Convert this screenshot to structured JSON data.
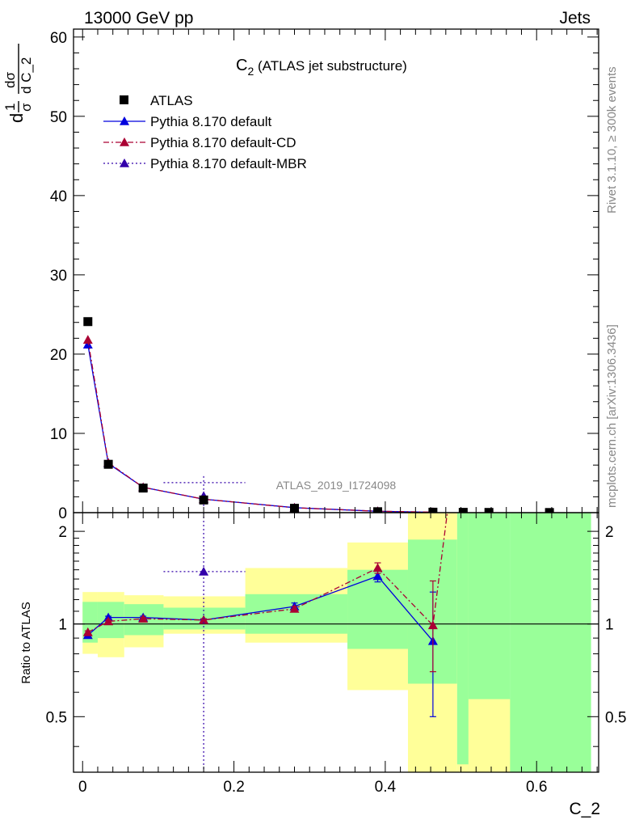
{
  "chart_data": {
    "type": "scatter",
    "header": {
      "left": "13000 GeV pp",
      "right": "Jets"
    },
    "title": {
      "main": "C",
      "sub": "2",
      "rest": " (ATLAS jet substructure)"
    },
    "xlabel": "C_2",
    "ylabel": {
      "num1": "1",
      "den1": "σ",
      "num2": "dσ",
      "den2": "d C_2",
      "d": "d",
      "d2": "d"
    },
    "ratio_ylabel": "Ratio to ATLAS",
    "analysis_id": "ATLAS_2019_I1724098",
    "side_text_1": "Rivet 3.1.10, ≥ 300k events",
    "side_text_2": "mcplots.cern.ch [arXiv:1306.3436]",
    "xlim": [
      -0.012,
      0.682
    ],
    "ylim_main": [
      0,
      61
    ],
    "ylim_ratio": [
      0.33,
      2.3
    ],
    "ratio_log_scale": true,
    "x_ticks": [
      {
        "v": 0,
        "label": "0"
      },
      {
        "v": 0.2,
        "label": "0.2"
      },
      {
        "v": 0.4,
        "label": "0.4"
      },
      {
        "v": 0.6,
        "label": "0.6"
      }
    ],
    "y_ticks_main": [
      {
        "v": 0,
        "label": "0"
      },
      {
        "v": 10,
        "label": "10"
      },
      {
        "v": 20,
        "label": "20"
      },
      {
        "v": 30,
        "label": "30"
      },
      {
        "v": 40,
        "label": "40"
      },
      {
        "v": 50,
        "label": "50"
      },
      {
        "v": 60,
        "label": "60"
      }
    ],
    "y_ticks_ratio": [
      {
        "v": 0.5,
        "label": "0.5"
      },
      {
        "v": 1,
        "label": "1"
      },
      {
        "v": 2,
        "label": "2"
      }
    ],
    "legend": [
      {
        "label": "ATLAS",
        "color": "#000000",
        "style": "square"
      },
      {
        "label": "Pythia 8.170 default",
        "color": "#0000dd",
        "style": "solid"
      },
      {
        "label": "Pythia 8.170 default-CD",
        "color": "#aa0033",
        "style": "dashdot"
      },
      {
        "label": "Pythia 8.170 default-MBR",
        "color": "#3300aa",
        "style": "dotted"
      }
    ],
    "bands": [
      {
        "x0": 0.0,
        "x1": 0.02,
        "g": [
          0.87,
          1.18
        ],
        "y": [
          0.8,
          1.27
        ]
      },
      {
        "x0": 0.02,
        "x1": 0.055,
        "g": [
          0.9,
          1.18
        ],
        "y": [
          0.78,
          1.27
        ]
      },
      {
        "x0": 0.055,
        "x1": 0.107,
        "g": [
          0.92,
          1.16
        ],
        "y": [
          0.84,
          1.24
        ]
      },
      {
        "x0": 0.107,
        "x1": 0.215,
        "g": [
          0.96,
          1.13
        ],
        "y": [
          0.93,
          1.23
        ]
      },
      {
        "x0": 0.215,
        "x1": 0.35,
        "g": [
          0.93,
          1.25
        ],
        "y": [
          0.87,
          1.52
        ]
      },
      {
        "x0": 0.35,
        "x1": 0.43,
        "g": [
          0.83,
          1.5
        ],
        "y": [
          0.61,
          1.84
        ]
      },
      {
        "x0": 0.43,
        "x1": 0.495,
        "g": [
          0.33,
          2.3
        ],
        "y": [
          0.33,
          2.3
        ],
        "gg": [
          0.64,
          1.88
        ]
      },
      {
        "x0": 0.495,
        "x1": 0.51,
        "g": [
          0.35,
          2.3
        ],
        "y": [
          0.33,
          2.3
        ]
      },
      {
        "x0": 0.51,
        "x1": 0.565,
        "g": [
          0.33,
          2.3
        ],
        "y": [
          0.33,
          0.57
        ],
        "yAtBottom": true
      },
      {
        "x0": 0.565,
        "x1": 0.672,
        "g": [
          0.33,
          2.3
        ]
      }
    ],
    "atlas": [
      {
        "x": 0.007,
        "y": 24.1
      },
      {
        "x": 0.034,
        "y": 6.1
      },
      {
        "x": 0.08,
        "y": 3.1
      },
      {
        "x": 0.16,
        "y": 1.6
      },
      {
        "x": 0.28,
        "y": 0.55
      },
      {
        "x": 0.39,
        "y": 0.12
      },
      {
        "x": 0.463,
        "y": 0.06
      },
      {
        "x": 0.503,
        "y": 0.04
      },
      {
        "x": 0.537,
        "y": 0.03
      },
      {
        "x": 0.617,
        "y": 0.02
      }
    ],
    "series": [
      {
        "name": "Pythia 8.170 default",
        "color": "#0000dd",
        "dash": "",
        "points": [
          {
            "x": 0.007,
            "y": 21.2,
            "r": 0.92,
            "rlo": 0.91,
            "rhi": 0.93
          },
          {
            "x": 0.034,
            "y": 6.2,
            "r": 1.05,
            "rlo": 1.04,
            "rhi": 1.06
          },
          {
            "x": 0.08,
            "y": 3.2,
            "r": 1.05,
            "rlo": 1.04,
            "rhi": 1.06
          },
          {
            "x": 0.16,
            "y": 1.7,
            "r": 1.03,
            "rlo": 1.02,
            "rhi": 1.04
          },
          {
            "x": 0.28,
            "y": 0.63,
            "r": 1.14,
            "rlo": 1.11,
            "rhi": 1.17
          },
          {
            "x": 0.39,
            "y": 0.17,
            "r": 1.43,
            "rlo": 1.37,
            "rhi": 1.49
          },
          {
            "x": 0.463,
            "y": 0.05,
            "r": 0.88,
            "rlo": 0.5,
            "rhi": 1.27
          }
        ]
      },
      {
        "name": "Pythia 8.170 default-CD",
        "color": "#aa0033",
        "dash": "7,3,2,3",
        "points": [
          {
            "x": 0.007,
            "y": 21.8,
            "r": 0.94,
            "rlo": 0.93,
            "rhi": 0.95
          },
          {
            "x": 0.034,
            "y": 6.3,
            "r": 1.02,
            "rlo": 1.01,
            "rhi": 1.03
          },
          {
            "x": 0.08,
            "y": 3.2,
            "r": 1.04,
            "rlo": 1.03,
            "rhi": 1.05
          },
          {
            "x": 0.16,
            "y": 1.7,
            "r": 1.03,
            "rlo": 1.02,
            "rhi": 1.04
          },
          {
            "x": 0.28,
            "y": 0.62,
            "r": 1.12,
            "rlo": 1.1,
            "rhi": 1.14
          },
          {
            "x": 0.39,
            "y": 0.18,
            "r": 1.52,
            "rlo": 1.46,
            "rhi": 1.58
          },
          {
            "x": 0.463,
            "y": 0.06,
            "r": 0.99,
            "rlo": 0.7,
            "rhi": 1.38
          },
          {
            "x": 0.482,
            "y": null,
            "r": 2.3
          }
        ]
      },
      {
        "name": "Pythia 8.170 default-MBR",
        "color": "#3300aa",
        "dash": "2,3",
        "points": [
          {
            "x": 0.16,
            "y": 2.1,
            "r": 1.48,
            "rlo": 0.33,
            "rhi": 2.3,
            "xlo": 0.107,
            "xhi": 0.215,
            "ylo": 0.5,
            "yhi": 4.6
          }
        ]
      }
    ]
  }
}
